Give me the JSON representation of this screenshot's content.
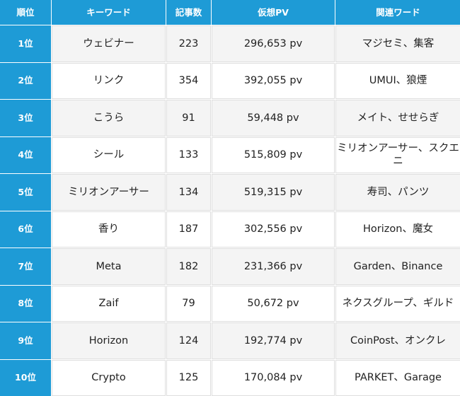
{
  "colors": {
    "header_bg": "#1e9bd6",
    "header_text": "#ffffff",
    "row_alt_bg": "#f4f4f4",
    "row_bg": "#ffffff"
  },
  "headers": [
    "順位",
    "キーワード",
    "記事数",
    "仮想PV",
    "関連ワード"
  ],
  "rows": [
    {
      "rank": "1位",
      "keyword": "ウェビナー",
      "articles": "223",
      "pv": "296,653 pv",
      "related": "マジセミ、集客"
    },
    {
      "rank": "2位",
      "keyword": "リンク",
      "articles": "354",
      "pv": "392,055 pv",
      "related": "UMUI、狼煙"
    },
    {
      "rank": "3位",
      "keyword": "こうら",
      "articles": "91",
      "pv": "59,448 pv",
      "related": "メイト、せせらぎ"
    },
    {
      "rank": "4位",
      "keyword": "シール",
      "articles": "133",
      "pv": "515,809 pv",
      "related": "ミリオンアーサー、スクエニ"
    },
    {
      "rank": "5位",
      "keyword": "ミリオンアーサー",
      "articles": "134",
      "pv": "519,315 pv",
      "related": "寿司、パンツ"
    },
    {
      "rank": "6位",
      "keyword": "香り",
      "articles": "187",
      "pv": "302,556 pv",
      "related": "Horizon、魔女"
    },
    {
      "rank": "7位",
      "keyword": "Meta",
      "articles": "182",
      "pv": "231,366 pv",
      "related": "Garden、Binance"
    },
    {
      "rank": "8位",
      "keyword": "Zaif",
      "articles": "79",
      "pv": "50,672 pv",
      "related": "ネクスグループ、ギルド"
    },
    {
      "rank": "9位",
      "keyword": "Horizon",
      "articles": "124",
      "pv": "192,774 pv",
      "related": "CoinPost、オンクレ"
    },
    {
      "rank": "10位",
      "keyword": "Crypto",
      "articles": "125",
      "pv": "170,084 pv",
      "related": "PARKET、Garage"
    }
  ]
}
